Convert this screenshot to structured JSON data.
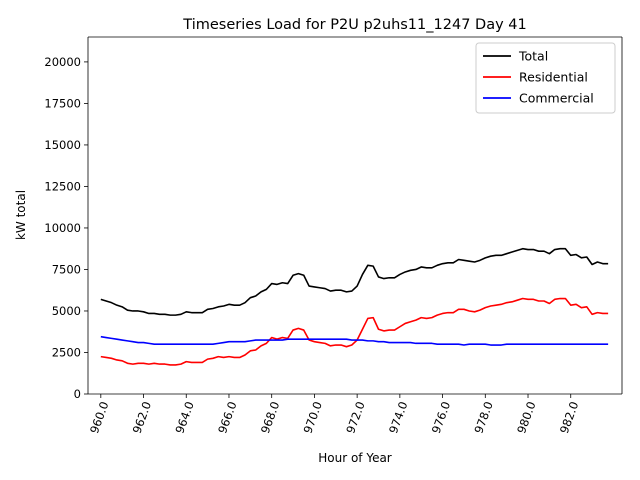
{
  "chart_data": {
    "type": "line",
    "title": "Timeseries Load for P2U p2uhs11_1247  Day 41",
    "xlabel": "Hour of Year",
    "ylabel": "kW total",
    "xlim": [
      959.4,
      984.4
    ],
    "ylim": [
      0,
      21500
    ],
    "xticks": [
      960,
      962,
      964,
      966,
      968,
      970,
      972,
      974,
      976,
      978,
      980,
      982
    ],
    "xtick_labels": [
      "960.0",
      "962.0",
      "964.0",
      "966.0",
      "968.0",
      "970.0",
      "972.0",
      "974.0",
      "976.0",
      "978.0",
      "980.0",
      "982.0"
    ],
    "yticks": [
      0,
      2500,
      5000,
      7500,
      10000,
      12500,
      15000,
      17500,
      20000
    ],
    "ytick_labels": [
      "0",
      "2500",
      "5000",
      "7500",
      "10000",
      "12500",
      "15000",
      "17500",
      "20000"
    ],
    "legend_position": "top-right",
    "x": [
      960.0,
      960.25,
      960.5,
      960.75,
      961.0,
      961.25,
      961.5,
      961.75,
      962.0,
      962.25,
      962.5,
      962.75,
      963.0,
      963.25,
      963.5,
      963.75,
      964.0,
      964.25,
      964.5,
      964.75,
      965.0,
      965.25,
      965.5,
      965.75,
      966.0,
      966.25,
      966.5,
      966.75,
      967.0,
      967.25,
      967.5,
      967.75,
      968.0,
      968.25,
      968.5,
      968.75,
      969.0,
      969.25,
      969.5,
      969.75,
      970.0,
      970.25,
      970.5,
      970.75,
      971.0,
      971.25,
      971.5,
      971.75,
      972.0,
      972.25,
      972.5,
      972.75,
      973.0,
      973.25,
      973.5,
      973.75,
      974.0,
      974.25,
      974.5,
      974.75,
      975.0,
      975.25,
      975.5,
      975.75,
      976.0,
      976.25,
      976.5,
      976.75,
      977.0,
      977.25,
      977.5,
      977.75,
      978.0,
      978.25,
      978.5,
      978.75,
      979.0,
      979.25,
      979.5,
      979.75,
      980.0,
      980.25,
      980.5,
      980.75,
      981.0,
      981.25,
      981.5,
      981.75,
      982.0,
      982.25,
      982.5,
      982.75,
      983.0,
      983.25,
      983.5,
      983.75
    ],
    "series": [
      {
        "name": "Total",
        "color": "#000000",
        "values": [
          5700,
          5600,
          5500,
          5350,
          5250,
          5050,
          5000,
          5000,
          4950,
          4850,
          4850,
          4800,
          4800,
          4750,
          4750,
          4800,
          4950,
          4900,
          4900,
          4900,
          5100,
          5150,
          5250,
          5300,
          5400,
          5350,
          5350,
          5500,
          5800,
          5900,
          6150,
          6300,
          6650,
          6600,
          6700,
          6650,
          7150,
          7250,
          7150,
          6500,
          6450,
          6400,
          6350,
          6200,
          6250,
          6250,
          6150,
          6200,
          6500,
          7200,
          7750,
          7700,
          7050,
          6950,
          7000,
          7000,
          7200,
          7350,
          7450,
          7500,
          7650,
          7600,
          7600,
          7750,
          7850,
          7900,
          7900,
          8100,
          8050,
          8000,
          7950,
          8050,
          8200,
          8300,
          8350,
          8350,
          8450,
          8550,
          8650,
          8750,
          8700,
          8700,
          8600,
          8600,
          8450,
          8700,
          8750,
          8750,
          8350,
          8400,
          8200,
          8250,
          7800,
          7950,
          7850,
          7850
        ]
      },
      {
        "name": "Residential",
        "color": "#ff0000",
        "values": [
          2250,
          2200,
          2150,
          2050,
          2000,
          1850,
          1800,
          1850,
          1850,
          1800,
          1850,
          1800,
          1800,
          1750,
          1750,
          1800,
          1950,
          1900,
          1900,
          1900,
          2100,
          2150,
          2250,
          2200,
          2250,
          2200,
          2200,
          2350,
          2600,
          2650,
          2900,
          3050,
          3400,
          3300,
          3400,
          3350,
          3850,
          3950,
          3850,
          3250,
          3150,
          3100,
          3050,
          2900,
          2950,
          2950,
          2850,
          2950,
          3250,
          3900,
          4550,
          4600,
          3900,
          3800,
          3850,
          3850,
          4050,
          4250,
          4350,
          4450,
          4600,
          4550,
          4600,
          4750,
          4850,
          4900,
          4900,
          5100,
          5100,
          5000,
          4950,
          5050,
          5200,
          5300,
          5350,
          5400,
          5500,
          5550,
          5650,
          5750,
          5700,
          5700,
          5600,
          5600,
          5450,
          5700,
          5750,
          5750,
          5350,
          5400,
          5200,
          5250,
          4800,
          4900,
          4850,
          4850
        ]
      },
      {
        "name": "Commercial",
        "color": "#0000ff",
        "values": [
          3450,
          3400,
          3350,
          3300,
          3250,
          3200,
          3150,
          3100,
          3100,
          3050,
          3000,
          3000,
          3000,
          3000,
          3000,
          3000,
          3000,
          3000,
          3000,
          3000,
          3000,
          3000,
          3050,
          3100,
          3150,
          3150,
          3150,
          3150,
          3200,
          3250,
          3250,
          3250,
          3250,
          3250,
          3250,
          3300,
          3300,
          3300,
          3300,
          3300,
          3300,
          3300,
          3300,
          3300,
          3300,
          3300,
          3300,
          3250,
          3250,
          3250,
          3200,
          3200,
          3150,
          3150,
          3100,
          3100,
          3100,
          3100,
          3100,
          3050,
          3050,
          3050,
          3050,
          3000,
          3000,
          3000,
          3000,
          3000,
          2950,
          3000,
          3000,
          3000,
          3000,
          2950,
          2950,
          2950,
          3000,
          3000,
          3000,
          3000,
          3000,
          3000,
          3000,
          3000,
          3000,
          3000,
          3000,
          3000,
          3000,
          3000,
          3000,
          3000,
          3000,
          3000,
          3000,
          3000
        ]
      }
    ]
  }
}
